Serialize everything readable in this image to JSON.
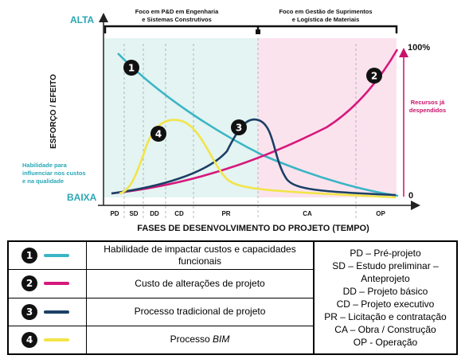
{
  "chart": {
    "y_axis_label": "ESFORÇO / EFEITO",
    "y_high_label": "ALTA",
    "y_low_label": "BAIXA",
    "x_axis_label": "FASES DE DESENVOLVIMENTO DO PROJETO (TEMPO)",
    "left_note": "Habilidade para influenciar nos custos e na qualidade",
    "right_top_label": "100%",
    "right_bottom_label": "0",
    "right_note": "Recursos já despendidos",
    "focus_left": "Foco em P&D em Engenharia e Sistemas Construtivos",
    "focus_right": "Foco em Gestão de Suprimentos e Logística de Materiais",
    "phases": [
      "PD",
      "SD",
      "DD",
      "CD",
      "PR",
      "CA",
      "OP"
    ],
    "markers": [
      "1",
      "2",
      "3",
      "4"
    ],
    "colors": {
      "curve1": "#3bb5c5",
      "curve2": "#d6197c",
      "curve3": "#1c3f66",
      "curve4": "#f2e44a",
      "bg_left": "#e3f4f2",
      "bg_right": "#fbe3ee",
      "accent_text": "#2aa7b5",
      "magenta_text": "#c8116b"
    }
  },
  "legend": {
    "items": [
      {
        "number": "1",
        "text": "Habilidade de impactar custos e capacidades funcionais",
        "color": "#3bb5c5"
      },
      {
        "number": "2",
        "text": "Custo de alterações de projeto",
        "color": "#d6197c"
      },
      {
        "number": "3",
        "text": "Processo tradicional de projeto",
        "color": "#1c3f66"
      },
      {
        "number": "4",
        "text": "Processo BIM",
        "color": "#f2e44a"
      }
    ],
    "abbreviations": [
      "PD – Pré-projeto",
      "SD – Estudo preliminar – Anteprojeto",
      "DD – Projeto básico",
      "CD – Projeto executivo",
      "PR – Licitação e contratação",
      "CA – Obra / Construção",
      "OP - Operação"
    ]
  }
}
